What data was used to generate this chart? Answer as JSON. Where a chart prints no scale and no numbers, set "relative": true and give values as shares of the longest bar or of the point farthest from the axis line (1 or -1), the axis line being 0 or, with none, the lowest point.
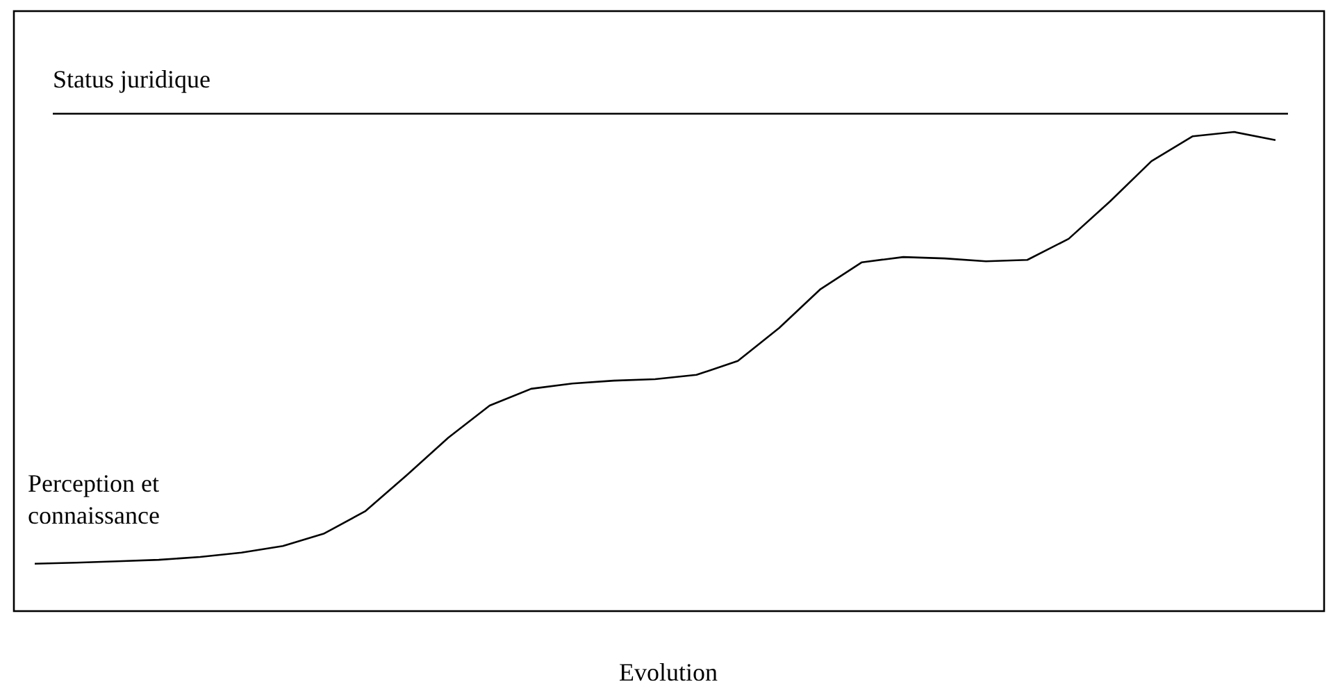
{
  "chart_data": {
    "type": "line",
    "relative": true,
    "xlabel": "Evolution",
    "categories": [
      null,
      null,
      null,
      null,
      null,
      null,
      null,
      null,
      null,
      null,
      null,
      null,
      null,
      null,
      null,
      null,
      null,
      null,
      null,
      null,
      null,
      null,
      null,
      null,
      null,
      null,
      null,
      null,
      null,
      null,
      null
    ],
    "series": [
      {
        "name": "Perception et connaissance",
        "color": "#000000",
        "values": [
          0.099,
          0.101,
          0.104,
          0.107,
          0.113,
          0.122,
          0.136,
          0.162,
          0.209,
          0.284,
          0.362,
          0.429,
          0.464,
          0.475,
          0.481,
          0.484,
          0.493,
          0.522,
          0.591,
          0.672,
          0.728,
          0.739,
          0.736,
          0.73,
          0.733,
          0.777,
          0.855,
          0.939,
          0.991,
          1,
          0.983
        ]
      }
    ],
    "ref_lines": [
      {
        "axis": "y",
        "value": 1.038,
        "label": "Status juridique",
        "color": "#000000"
      }
    ],
    "marker": "none",
    "line_style": "solid"
  }
}
